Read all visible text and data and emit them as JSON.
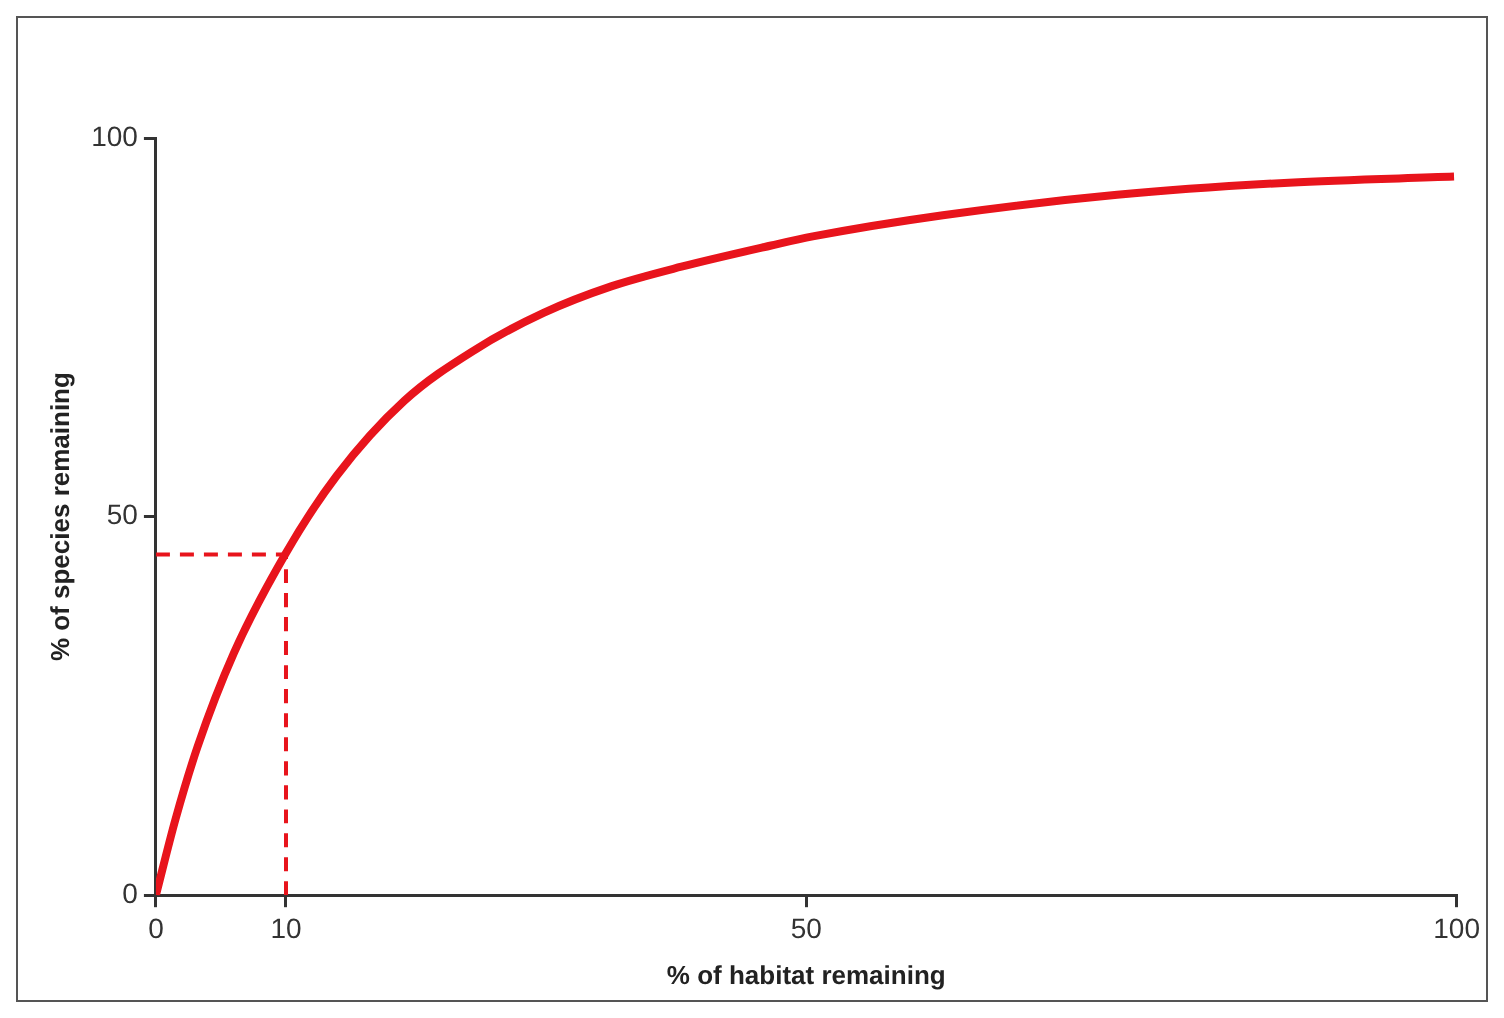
{
  "chart_data": {
    "type": "line",
    "xlabel": "% of habitat remaining",
    "ylabel": "% of species remaining",
    "xlim": [
      0,
      100
    ],
    "xticks": [
      0,
      10,
      50,
      100
    ],
    "ylim": [
      0,
      100
    ],
    "yticks": [
      0,
      50,
      100
    ],
    "grid": false,
    "legend": false,
    "marker": "none",
    "series": [
      {
        "color": "#e8141c",
        "x": [
          0,
          1.5,
          3.2,
          6,
          10,
          13.9,
          19.1,
          24.5,
          29.8,
          35,
          40.4,
          47.3,
          50.5,
          60.5,
          73.9,
          87.1,
          99.8
        ],
        "values": [
          0,
          10,
          19.6,
          32,
          45.2,
          55.4,
          65.3,
          72,
          76.9,
          80.4,
          83,
          85.8,
          87,
          89.8,
          92.5,
          94.1,
          94.9
        ]
      },
      {
        "color": "#e8141c",
        "line_style": "dashed",
        "x": [
          0,
          10
        ],
        "values": [
          45,
          45
        ]
      },
      {
        "color": "#e8141c",
        "line_style": "dashed",
        "x": [
          10,
          10
        ],
        "values": [
          0,
          45
        ]
      }
    ]
  }
}
